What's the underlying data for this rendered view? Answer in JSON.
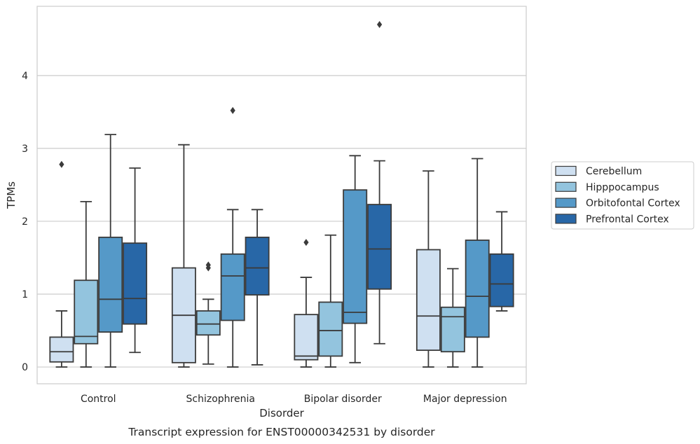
{
  "chart_data": {
    "type": "boxplot",
    "title": "",
    "caption": "Transcript expression for ENST00000342531 by disorder",
    "xlabel": "Disorder",
    "ylabel": "TPMs",
    "ylim": [
      -0.23,
      4.95
    ],
    "yticks": [
      0,
      1,
      2,
      3,
      4
    ],
    "grid": "horizontal",
    "legend_position": "right",
    "categories": [
      "Control",
      "Schizophrenia",
      "Bipolar disorder",
      "Major depression"
    ],
    "series": [
      {
        "name": "Cerebellum",
        "color": "#cfe0f1",
        "boxes": [
          {
            "whislo": 0.0,
            "q1": 0.07,
            "med": 0.21,
            "q3": 0.41,
            "whishi": 0.77,
            "fliers": [
              2.78
            ]
          },
          {
            "whislo": 0.0,
            "q1": 0.06,
            "med": 0.71,
            "q3": 1.36,
            "whishi": 3.05,
            "fliers": []
          },
          {
            "whislo": 0.0,
            "q1": 0.1,
            "med": 0.15,
            "q3": 0.72,
            "whishi": 1.23,
            "fliers": [
              1.71
            ]
          },
          {
            "whislo": 0.0,
            "q1": 0.23,
            "med": 0.7,
            "q3": 1.61,
            "whishi": 2.69,
            "fliers": []
          }
        ]
      },
      {
        "name": "Hipppocampus",
        "color": "#93c4de",
        "boxes": [
          {
            "whislo": 0.0,
            "q1": 0.32,
            "med": 0.42,
            "q3": 1.19,
            "whishi": 2.27,
            "fliers": []
          },
          {
            "whislo": 0.04,
            "q1": 0.44,
            "med": 0.59,
            "q3": 0.77,
            "whishi": 0.93,
            "fliers": [
              1.36,
              1.4
            ]
          },
          {
            "whislo": 0.0,
            "q1": 0.15,
            "med": 0.5,
            "q3": 0.89,
            "whishi": 1.81,
            "fliers": []
          },
          {
            "whislo": 0.0,
            "q1": 0.21,
            "med": 0.69,
            "q3": 0.82,
            "whishi": 1.35,
            "fliers": []
          }
        ]
      },
      {
        "name": "Orbitofontal Cortex",
        "color": "#5599c8",
        "boxes": [
          {
            "whislo": 0.0,
            "q1": 0.48,
            "med": 0.93,
            "q3": 1.78,
            "whishi": 3.19,
            "fliers": []
          },
          {
            "whislo": 0.0,
            "q1": 0.64,
            "med": 1.25,
            "q3": 1.55,
            "whishi": 2.16,
            "fliers": [
              3.52
            ]
          },
          {
            "whislo": 0.06,
            "q1": 0.6,
            "med": 0.75,
            "q3": 2.43,
            "whishi": 2.9,
            "fliers": []
          },
          {
            "whislo": 0.0,
            "q1": 0.41,
            "med": 0.97,
            "q3": 1.74,
            "whishi": 2.86,
            "fliers": []
          }
        ]
      },
      {
        "name": "Prefrontal Cortex",
        "color": "#2867a7",
        "boxes": [
          {
            "whislo": 0.2,
            "q1": 0.59,
            "med": 0.94,
            "q3": 1.7,
            "whishi": 2.73,
            "fliers": []
          },
          {
            "whislo": 0.03,
            "q1": 0.99,
            "med": 1.36,
            "q3": 1.78,
            "whishi": 2.16,
            "fliers": []
          },
          {
            "whislo": 0.32,
            "q1": 1.07,
            "med": 1.62,
            "q3": 2.23,
            "whishi": 2.83,
            "fliers": [
              4.7
            ]
          },
          {
            "whislo": 0.77,
            "q1": 0.83,
            "med": 1.14,
            "q3": 1.55,
            "whishi": 2.13,
            "fliers": []
          }
        ]
      }
    ],
    "colors": {
      "box_edge": "#3b3b3b",
      "grid": "#cccccc",
      "frame": "#cccccc"
    }
  }
}
